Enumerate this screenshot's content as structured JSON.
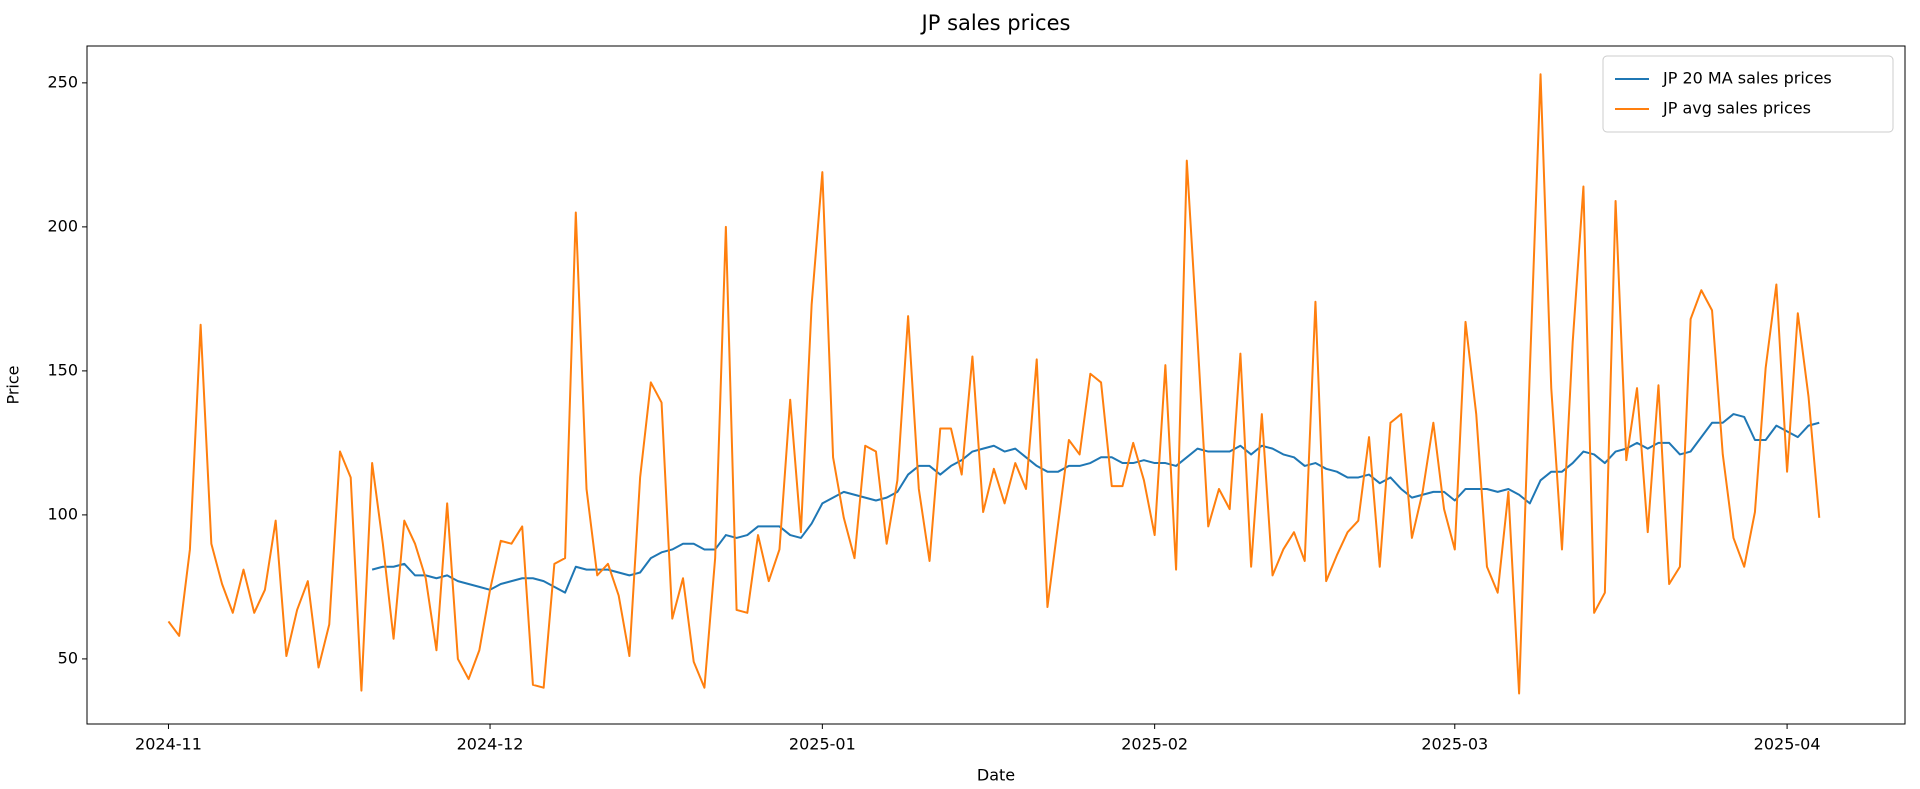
{
  "chart_data": {
    "type": "line",
    "title": "JP sales prices",
    "x_label": "Date",
    "y_label": "Price",
    "x": [
      0,
      1,
      2,
      3,
      4,
      5,
      6,
      7,
      8,
      9,
      10,
      11,
      12,
      13,
      14,
      15,
      16,
      17,
      18,
      19,
      20,
      21,
      22,
      23,
      24,
      25,
      26,
      27,
      28,
      29,
      30,
      31,
      32,
      33,
      34,
      35,
      36,
      37,
      38,
      39,
      40,
      41,
      42,
      43,
      44,
      45,
      46,
      47,
      48,
      49,
      50,
      51,
      52,
      53,
      54,
      55,
      56,
      57,
      58,
      59,
      60,
      61,
      62,
      63,
      64,
      65,
      66,
      67,
      68,
      69,
      70,
      71,
      72,
      73,
      74,
      75,
      76,
      77,
      78,
      79,
      80,
      81,
      82,
      83,
      84,
      85,
      86,
      87,
      88,
      89,
      90,
      91,
      92,
      93,
      94,
      95,
      96,
      97,
      98,
      99,
      100,
      101,
      102,
      103,
      104,
      105,
      106,
      107,
      108,
      109,
      110,
      111,
      112,
      113,
      114,
      115,
      116,
      117,
      118,
      119,
      120,
      121,
      122,
      123,
      124,
      125,
      126,
      127,
      128,
      129,
      130,
      131,
      132,
      133,
      134,
      135,
      136,
      137,
      138,
      139,
      140,
      141,
      142,
      143,
      144,
      145,
      146,
      147,
      148,
      149,
      150,
      151,
      152,
      153,
      154
    ],
    "series": [
      {
        "name": "JP 20 MA sales prices",
        "color": "#1f77b4",
        "values": [
          null,
          null,
          null,
          null,
          null,
          null,
          null,
          null,
          null,
          null,
          null,
          null,
          null,
          null,
          null,
          null,
          null,
          null,
          null,
          81,
          82,
          82,
          83,
          79,
          79,
          78,
          79,
          77,
          76,
          75,
          74,
          76,
          77,
          78,
          78,
          77,
          75,
          73,
          82,
          81,
          81,
          81,
          80,
          79,
          80,
          85,
          87,
          88,
          90,
          90,
          88,
          88,
          93,
          92,
          93,
          96,
          96,
          96,
          93,
          92,
          97,
          104,
          106,
          108,
          107,
          106,
          105,
          106,
          108,
          114,
          117,
          117,
          114,
          117,
          119,
          122,
          123,
          124,
          122,
          123,
          120,
          117,
          115,
          115,
          117,
          117,
          118,
          120,
          120,
          118,
          118,
          119,
          118,
          118,
          117,
          120,
          123,
          122,
          122,
          122,
          124,
          121,
          124,
          123,
          121,
          120,
          117,
          118,
          116,
          115,
          113,
          113,
          114,
          111,
          113,
          109,
          106,
          107,
          108,
          108,
          105,
          109,
          109,
          109,
          108,
          109,
          107,
          104,
          112,
          115,
          115,
          118,
          122,
          121,
          118,
          122,
          123,
          125,
          123,
          125,
          125,
          121,
          122,
          127,
          132,
          132,
          135,
          134,
          126,
          126,
          131,
          129,
          127,
          131,
          132
        ]
      },
      {
        "name": "JP avg sales prices",
        "color": "#ff7f0e",
        "values": [
          63,
          58,
          88,
          166,
          90,
          76,
          66,
          81,
          66,
          74,
          98,
          51,
          67,
          77,
          47,
          62,
          122,
          113,
          39,
          118,
          90,
          57,
          98,
          90,
          78,
          53,
          104,
          50,
          43,
          53,
          74,
          91,
          90,
          96,
          41,
          40,
          83,
          85,
          205,
          109,
          79,
          83,
          72,
          51,
          113,
          146,
          139,
          64,
          78,
          49,
          40,
          85,
          200,
          67,
          66,
          93,
          77,
          88,
          140,
          94,
          173,
          219,
          120,
          99,
          85,
          124,
          122,
          90,
          112,
          169,
          109,
          84,
          130,
          130,
          114,
          155,
          101,
          116,
          104,
          118,
          109,
          154,
          68,
          97,
          126,
          121,
          149,
          146,
          110,
          110,
          125,
          112,
          93,
          152,
          81,
          223,
          161,
          96,
          109,
          102,
          156,
          82,
          135,
          79,
          88,
          94,
          84,
          174,
          77,
          86,
          94,
          98,
          127,
          82,
          132,
          135,
          92,
          108,
          132,
          102,
          88,
          167,
          135,
          82,
          73,
          108,
          38,
          150,
          253,
          144,
          88,
          160,
          214,
          66,
          73,
          209,
          119,
          144,
          94,
          145,
          76,
          82,
          168,
          178,
          171,
          121,
          92,
          82,
          101,
          151,
          180,
          115,
          170,
          141,
          99
        ]
      }
    ],
    "xlim": [
      -7.6,
      162
    ],
    "xticks": [
      {
        "value": 0,
        "label": "2024-11"
      },
      {
        "value": 30,
        "label": "2024-12"
      },
      {
        "value": 61,
        "label": "2025-01"
      },
      {
        "value": 92,
        "label": "2025-02"
      },
      {
        "value": 120,
        "label": "2025-03"
      },
      {
        "value": 151,
        "label": "2025-04"
      }
    ],
    "ylim": [
      27.4,
      262.8
    ],
    "yticks": [
      50,
      100,
      150,
      200,
      250
    ],
    "grid": false,
    "legend": "upper right"
  }
}
